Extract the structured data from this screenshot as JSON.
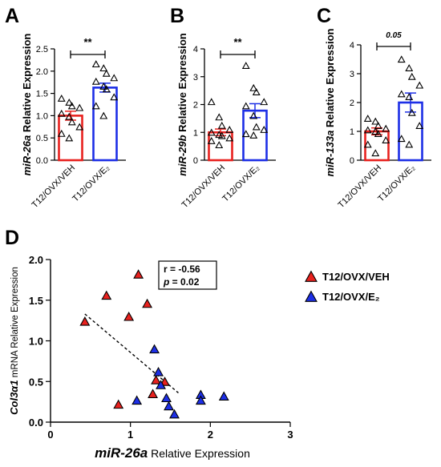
{
  "chart_data": [
    {
      "panel": "A",
      "type": "bar",
      "ylabel_italic": "miR-26a",
      "ylabel_rest": " Relative Expression",
      "ylim": [
        0,
        2.5
      ],
      "yticks": [
        "0.0",
        "0.5",
        "1.0",
        "1.5",
        "2.0",
        "2.5"
      ],
      "categories": [
        "T12/OVX/VEH",
        "T12/OVX/E₂"
      ],
      "values": [
        1.0,
        1.63
      ],
      "sem": [
        0.1,
        0.1
      ],
      "points": [
        [
          1.39,
          1.3,
          1.22,
          1.18,
          1.05,
          0.98,
          0.86,
          0.75,
          0.6,
          0.5
        ],
        [
          2.16,
          2.07,
          1.95,
          1.85,
          1.77,
          1.66,
          1.6,
          1.42,
          1.22,
          1.0
        ]
      ],
      "significance": "**"
    },
    {
      "panel": "B",
      "type": "bar",
      "ylabel_italic": "miR-29b",
      "ylabel_rest": " Relative Expression",
      "ylim": [
        0,
        4
      ],
      "yticks": [
        "0",
        "1",
        "2",
        "3",
        "4"
      ],
      "categories": [
        "T12/OVX/VEH",
        "T12/OVX/E₂"
      ],
      "values": [
        1.0,
        1.78
      ],
      "sem": [
        0.12,
        0.25
      ],
      "points": [
        [
          2.1,
          1.55,
          1.25,
          1.1,
          1.0,
          0.92,
          0.88,
          0.8,
          0.7,
          0.55
        ],
        [
          3.4,
          2.6,
          2.45,
          2.1,
          1.95,
          1.6,
          1.2,
          1.1,
          0.95,
          0.9
        ]
      ],
      "significance": "**"
    },
    {
      "panel": "C",
      "type": "bar",
      "ylabel_italic": "miR-133a",
      "ylabel_rest": " Relative Expression",
      "ylim": [
        0,
        4
      ],
      "yticks": [
        "0",
        "1",
        "2",
        "3",
        "4"
      ],
      "categories": [
        "T12/OVX/VEH",
        "T12/OVX/E₂"
      ],
      "values": [
        1.0,
        2.0
      ],
      "sem": [
        0.12,
        0.33
      ],
      "points": [
        [
          1.45,
          1.35,
          1.2,
          1.1,
          1.05,
          1.0,
          0.92,
          0.7,
          0.55,
          0.25
        ],
        [
          3.5,
          3.2,
          2.9,
          2.6,
          2.3,
          2.2,
          1.65,
          1.2,
          0.75,
          0.55
        ]
      ],
      "significance": "0.05"
    },
    {
      "panel": "D",
      "type": "scatter",
      "xlabel_italic": "miR-26a",
      "xlabel_rest": " Relative Expression",
      "ylabel_italic": "Col3α1",
      "ylabel_rest": " mRNA Relative Expression",
      "xlim": [
        0,
        3
      ],
      "ylim": [
        0,
        2.0
      ],
      "xticks": [
        "0",
        "1",
        "2",
        "3"
      ],
      "yticks": [
        "0.0",
        "0.5",
        "1.0",
        "1.5",
        "2.0"
      ],
      "stats_r": "r = -0.56",
      "stats_p_italic": "p",
      "stats_p_rest": " = 0.02",
      "series": [
        {
          "name": "T12/OVX/VEH",
          "color": "#e8211e",
          "x": [
            0.43,
            0.7,
            0.98,
            1.1,
            1.21,
            1.32,
            1.28,
            1.43,
            0.85
          ],
          "y": [
            1.24,
            1.56,
            1.3,
            1.82,
            1.46,
            0.52,
            0.35,
            0.5,
            0.22
          ]
        },
        {
          "name": "T12/OVX/E₂",
          "color": "#1d2fe6",
          "x": [
            1.3,
            1.35,
            1.38,
            1.08,
            1.45,
            1.55,
            1.88,
            1.88,
            2.17,
            1.48
          ],
          "y": [
            0.9,
            0.62,
            0.46,
            0.27,
            0.3,
            0.1,
            0.34,
            0.27,
            0.32,
            0.2
          ]
        }
      ],
      "trendline": {
        "x": [
          0.43,
          1.6
        ],
        "y": [
          1.33,
          0.36
        ]
      }
    }
  ],
  "panels": {
    "a": "A",
    "b": "B",
    "c": "C",
    "d": "D"
  }
}
